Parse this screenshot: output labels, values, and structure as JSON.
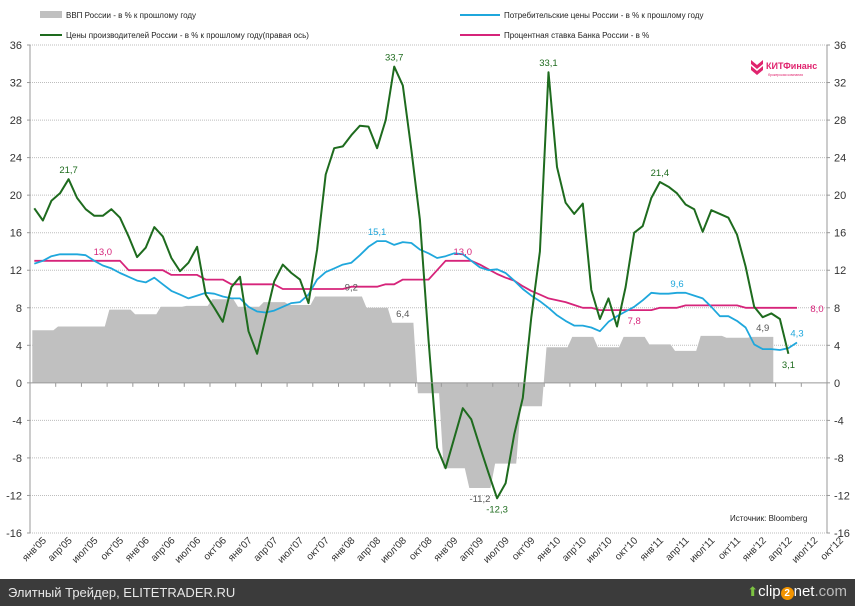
{
  "chart_data": {
    "type": "line",
    "yaxis_left": {
      "min": -16,
      "max": 36,
      "step": 4
    },
    "yaxis_right": {
      "min": -16,
      "max": 36,
      "step": 4
    },
    "grid": true,
    "legend_position": "top",
    "x_tick_labels": [
      "янв'05",
      "апр'05",
      "июл'05",
      "окт'05",
      "янв'06",
      "апр'06",
      "июл'06",
      "окт'06",
      "янв'07",
      "апр'07",
      "июл'07",
      "окт'07",
      "янв'08",
      "апр'08",
      "июл'08",
      "окт'08",
      "янв'09",
      "апр'09",
      "июл'09",
      "окт'09",
      "янв'10",
      "апр'10",
      "июл'10",
      "окт'10",
      "янв'11",
      "апр'11",
      "июл'11",
      "окт'11",
      "янв'12",
      "апр'12",
      "июл'12",
      "окт'12"
    ],
    "x_frequency": "monthly from янв'05",
    "series": [
      {
        "name": "ВВП России - в % к прошлому году",
        "kind": "area",
        "frequency": "quarterly",
        "color": "#c0c0c0",
        "values": [
          5.6,
          6.0,
          6.0,
          7.8,
          7.3,
          8.1,
          8.2,
          8.9,
          8.1,
          8.6,
          8.3,
          9.2,
          9.2,
          8.0,
          6.4,
          -1.1,
          -9.1,
          -11.2,
          -8.6,
          -2.5,
          3.8,
          4.9,
          3.8,
          4.9,
          4.1,
          3.4,
          5.0,
          4.8,
          4.9
        ]
      },
      {
        "name": "Потребительские цены России - в % к прошлому году",
        "kind": "line",
        "color": "#1fa7dc",
        "values": [
          12.7,
          13.0,
          13.5,
          13.7,
          13.7,
          13.7,
          13.6,
          13.0,
          12.5,
          12.2,
          11.7,
          11.3,
          10.9,
          10.7,
          11.2,
          10.5,
          9.8,
          9.4,
          9.0,
          9.3,
          9.6,
          9.5,
          9.2,
          9.0,
          9.0,
          8.1,
          7.6,
          7.5,
          7.7,
          8.1,
          8.5,
          8.6,
          9.4,
          11.0,
          11.8,
          12.2,
          12.6,
          12.8,
          13.6,
          14.5,
          15.1,
          15.1,
          14.7,
          15.0,
          14.9,
          14.2,
          13.8,
          13.3,
          13.5,
          13.8,
          13.7,
          13.0,
          12.3,
          12.0,
          12.1,
          11.7,
          10.9,
          10.0,
          9.3,
          8.7,
          8.0,
          7.2,
          6.6,
          6.1,
          6.1,
          5.9,
          5.5,
          6.5,
          7.1,
          7.6,
          8.1,
          8.8,
          9.6,
          9.5,
          9.5,
          9.6,
          9.6,
          9.3,
          9.0,
          8.1,
          7.1,
          7.1,
          6.6,
          5.9,
          4.1,
          3.6,
          3.6,
          3.5,
          3.7,
          4.3
        ]
      },
      {
        "name": "Цены производителей России - в % к прошлому году(правая  ось)",
        "kind": "line",
        "color": "#1e6b1e",
        "values": [
          18.6,
          17.3,
          19.4,
          20.2,
          21.7,
          19.7,
          18.5,
          17.8,
          17.8,
          18.5,
          17.6,
          15.6,
          13.4,
          14.4,
          16.6,
          15.6,
          13.3,
          11.9,
          12.8,
          14.5,
          9.4,
          8.0,
          6.5,
          10.2,
          11.3,
          5.5,
          3.1,
          7.0,
          10.8,
          12.6,
          11.7,
          11.0,
          8.5,
          14.2,
          22.2,
          25.0,
          25.2,
          26.4,
          27.4,
          27.3,
          25.0,
          28.0,
          33.7,
          31.7,
          24.8,
          17.4,
          4.6,
          -6.9,
          -9.1,
          -5.9,
          -2.7,
          -3.9,
          -6.8,
          -9.6,
          -12.3,
          -10.7,
          -5.5,
          -1.6,
          7.0,
          14.0,
          33.1,
          23.0,
          19.2,
          18.0,
          19.1,
          9.9,
          6.8,
          9.0,
          6.0,
          10.2,
          16.0,
          16.7,
          19.7,
          21.4,
          20.9,
          20.2,
          19.0,
          18.5,
          16.1,
          18.4,
          18.0,
          17.6,
          15.8,
          12.4,
          8.1,
          7.0,
          7.4,
          6.8,
          3.1
        ]
      },
      {
        "name": "Процентная ставка Банка России - в %",
        "kind": "line",
        "color": "#d6247a",
        "values": [
          13,
          13,
          13,
          13,
          13,
          13,
          13,
          13,
          13,
          13,
          13,
          12,
          12,
          12,
          12,
          12,
          11.5,
          11.5,
          11.5,
          11.5,
          11,
          11,
          11,
          10.5,
          10.5,
          10.5,
          10.5,
          10.5,
          10.5,
          10,
          10,
          10,
          10,
          10,
          10,
          10,
          10,
          10.25,
          10.25,
          10.25,
          10.25,
          10.5,
          10.5,
          11,
          11,
          11,
          11,
          12,
          13,
          13,
          13,
          13,
          12.6,
          12.1,
          11.6,
          11.2,
          10.9,
          10.3,
          9.8,
          9.4,
          9.0,
          8.8,
          8.6,
          8.3,
          8.0,
          8.0,
          7.75,
          7.75,
          7.75,
          7.75,
          7.75,
          7.75,
          7.75,
          8,
          8,
          8,
          8.25,
          8.25,
          8.25,
          8.25,
          8.25,
          8.25,
          8.25,
          8,
          8,
          8,
          8,
          8,
          8,
          8
        ]
      }
    ],
    "annotations": [
      {
        "text": "21,7",
        "series": 2,
        "index": 4,
        "pos": "above"
      },
      {
        "text": "33,7",
        "series": 2,
        "index": 42,
        "pos": "above"
      },
      {
        "text": "33,1",
        "series": 2,
        "index": 60,
        "pos": "above"
      },
      {
        "text": "-12,3",
        "series": 2,
        "index": 54,
        "pos": "below"
      },
      {
        "text": "21,4",
        "series": 2,
        "index": 73,
        "pos": "above"
      },
      {
        "text": "3,1",
        "series": 2,
        "index": 88,
        "pos": "below"
      },
      {
        "text": "15,1",
        "series": 1,
        "index": 40,
        "pos": "above"
      },
      {
        "text": "9,6",
        "series": 1,
        "index": 75,
        "pos": "above"
      },
      {
        "text": "4,3",
        "series": 1,
        "index": 89,
        "pos": "above"
      },
      {
        "text": "13,0",
        "series": 3,
        "index": 8,
        "pos": "above"
      },
      {
        "text": "13,0",
        "series": 3,
        "index": 50,
        "pos": "above"
      },
      {
        "text": "7,8",
        "series": 3,
        "index": 70,
        "pos": "below"
      },
      {
        "text": "8,0",
        "series": 3,
        "index": 93,
        "pos": "right"
      },
      {
        "text": "9,2",
        "series": 0,
        "index": 12,
        "pos": "above"
      },
      {
        "text": "6,4",
        "series": 0,
        "index": 14,
        "pos": "above"
      },
      {
        "text": "-11,2",
        "series": 0,
        "index": 17,
        "pos": "below"
      },
      {
        "text": "4,9",
        "series": 0,
        "index": 28,
        "pos": "above"
      }
    ],
    "source_note": "Источник: Bloomberg",
    "logo_text": "КИТФинанс",
    "logo_subtext": "брокерская компания"
  },
  "footer": {
    "site": "Элитный Трейдер, ELITETRADER.RU",
    "clip_a": "clip",
    "clip_b": "2",
    "clip_c": "net",
    "clip_d": ".com"
  }
}
